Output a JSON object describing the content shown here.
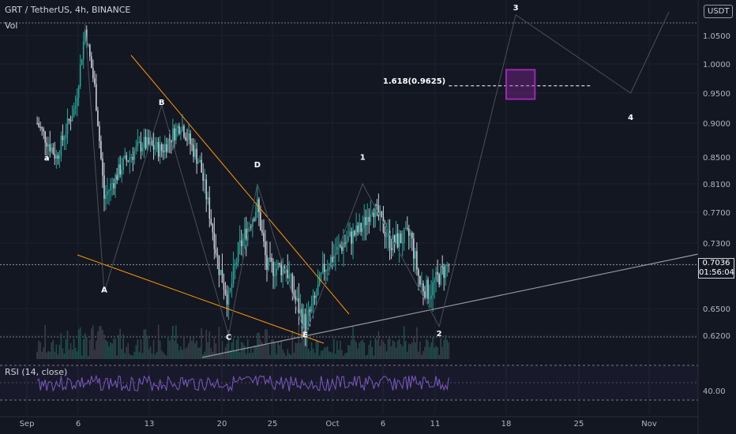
{
  "header": {
    "title": "GRT / TetherUS, 4h, BINANCE",
    "volume_label": "Vol",
    "rsi_label": "RSI (14, close)",
    "currency": "USDT"
  },
  "price_badge": {
    "price": "0.7036",
    "countdown": "01:56:04"
  },
  "fib_label": "1.618(0.9625)",
  "colors": {
    "background": "#131722",
    "up": "#26a69a",
    "down": "#c8ccd6",
    "channel": "#ff9800",
    "rsi": "#7e57c2",
    "target_box": "#9c27b0"
  },
  "chart_data": {
    "type": "candlestick",
    "symbol": "GRT / TetherUS",
    "interval": "4h",
    "exchange": "BINANCE",
    "x_tick_labels": [
      "Sep",
      "6",
      "13",
      "20",
      "25",
      "Oct",
      "6",
      "11",
      "18",
      "25",
      "Nov"
    ],
    "y_tick_labels": [
      "1.0500",
      "1.0000",
      "0.9500",
      "0.9000",
      "0.8500",
      "0.8100",
      "0.7700",
      "0.7300",
      "0.6500",
      "0.6200"
    ],
    "ylim": [
      0.6,
      1.09
    ],
    "last_price": 0.7036,
    "price_path": [
      {
        "date": "2021-09-01",
        "price": 0.9
      },
      {
        "date": "2021-09-03",
        "price": 0.85
      },
      {
        "date": "2021-09-05",
        "price": 0.93
      },
      {
        "date": "2021-09-06",
        "price": 1.06
      },
      {
        "date": "2021-09-07",
        "price": 0.96
      },
      {
        "date": "2021-09-08",
        "price": 0.79
      },
      {
        "date": "2021-09-10",
        "price": 0.84
      },
      {
        "date": "2021-09-12",
        "price": 0.87
      },
      {
        "date": "2021-09-14",
        "price": 0.86
      },
      {
        "date": "2021-09-16",
        "price": 0.9
      },
      {
        "date": "2021-09-18",
        "price": 0.84
      },
      {
        "date": "2021-09-20",
        "price": 0.7
      },
      {
        "date": "2021-09-21",
        "price": 0.66
      },
      {
        "date": "2021-09-22",
        "price": 0.72
      },
      {
        "date": "2021-09-24",
        "price": 0.78
      },
      {
        "date": "2021-09-25",
        "price": 0.7
      },
      {
        "date": "2021-09-27",
        "price": 0.7
      },
      {
        "date": "2021-09-28",
        "price": 0.66
      },
      {
        "date": "2021-09-29",
        "price": 0.63
      },
      {
        "date": "2021-09-30",
        "price": 0.66
      },
      {
        "date": "2021-10-01",
        "price": 0.7
      },
      {
        "date": "2021-10-03",
        "price": 0.73
      },
      {
        "date": "2021-10-05",
        "price": 0.75
      },
      {
        "date": "2021-10-06",
        "price": 0.78
      },
      {
        "date": "2021-10-08",
        "price": 0.73
      },
      {
        "date": "2021-10-10",
        "price": 0.74
      },
      {
        "date": "2021-10-11",
        "price": 0.68
      },
      {
        "date": "2021-10-12",
        "price": 0.67
      },
      {
        "date": "2021-10-13",
        "price": 0.69
      },
      {
        "date": "2021-10-14",
        "price": 0.7036
      }
    ],
    "wave_labels": [
      {
        "text": "a",
        "date": "2021-09-02",
        "price": 0.845
      },
      {
        "text": "A",
        "date": "2021-09-08",
        "price": 0.67
      },
      {
        "text": "B",
        "date": "2021-09-14",
        "price": 0.93
      },
      {
        "text": "C",
        "date": "2021-09-21",
        "price": 0.615
      },
      {
        "text": "D",
        "date": "2021-09-24",
        "price": 0.835
      },
      {
        "text": "E",
        "date": "2021-09-29",
        "price": 0.618
      },
      {
        "text": "1",
        "date": "2021-10-05",
        "price": 0.846
      },
      {
        "text": "2",
        "date": "2021-10-13",
        "price": 0.619
      },
      {
        "text": "3",
        "date": "2021-10-21",
        "price": 1.093
      },
      {
        "text": "4",
        "date": "2021-11-02",
        "price": 0.905
      }
    ],
    "fib_level": {
      "ratio": "1.618",
      "price": 0.9625,
      "from": "2021-10-14",
      "to": "2021-10-29"
    },
    "target_box": {
      "from": "2021-10-20",
      "to": "2021-10-23",
      "low": 0.94,
      "high": 0.99
    },
    "rsi": {
      "period": 14,
      "levels": [
        70,
        30
      ]
    }
  }
}
